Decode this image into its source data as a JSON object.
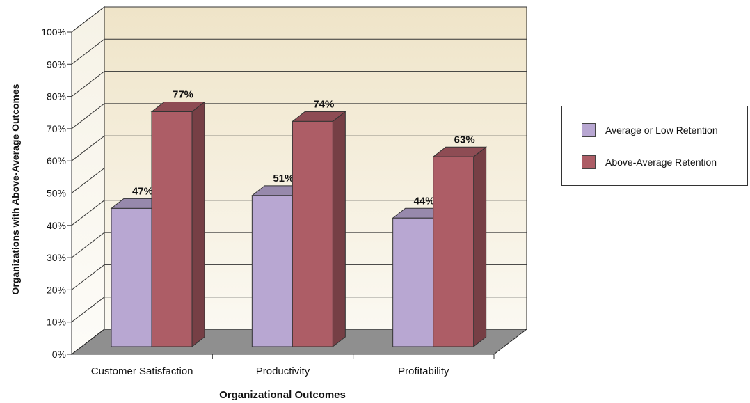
{
  "chart_data": {
    "type": "bar",
    "categories": [
      "Customer Satisfaction",
      "Productivity",
      "Profitability"
    ],
    "series": [
      {
        "name": "Average or Low Retention",
        "values": [
          47,
          51,
          44
        ],
        "labels": [
          "47%",
          "51%",
          "44%"
        ],
        "color": "#b8a7d2"
      },
      {
        "name": "Above-Average Retention",
        "values": [
          77,
          74,
          63
        ],
        "labels": [
          "77%",
          "74%",
          "63%"
        ],
        "color": "#ad5d66"
      }
    ],
    "xlabel": "Organizational Outcomes",
    "ylabel": "Organizations with Above-Average Outcomes",
    "ylim": [
      0,
      100
    ],
    "yticks": [
      "0%",
      "10%",
      "20%",
      "30%",
      "40%",
      "50%",
      "60%",
      "70%",
      "80%",
      "90%",
      "100%"
    ],
    "grid": true,
    "legend_position": "right",
    "style": "3d",
    "colors": {
      "wall": "#f1e8cf",
      "wall_bottom": "#fbf9f2",
      "floor": "#8f8f8f"
    }
  }
}
